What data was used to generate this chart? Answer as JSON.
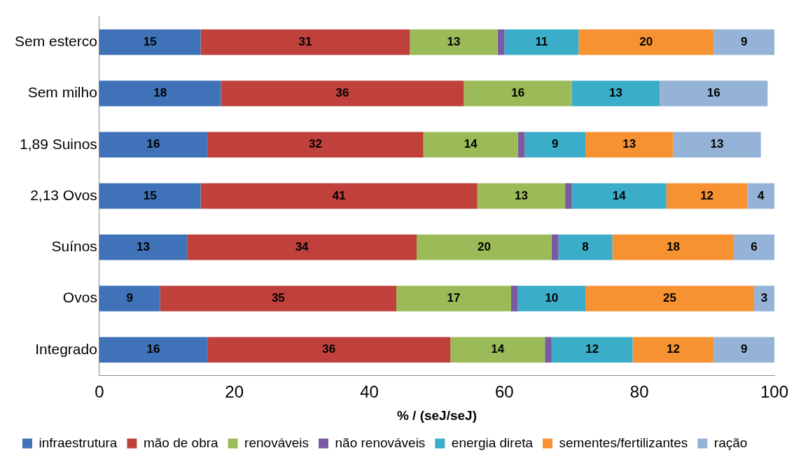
{
  "chart_data": {
    "type": "bar",
    "orientation": "horizontal",
    "stacked": true,
    "xlabel": "% / (seJ/seJ)",
    "xlim": [
      0,
      100
    ],
    "xticks": [
      0,
      20,
      40,
      60,
      80,
      100
    ],
    "grid": false,
    "legend": "bottom",
    "categories": [
      "Sem esterco",
      "Sem milho",
      "1,89 Suinos",
      "2,13 Ovos",
      "Suínos",
      "Ovos",
      "Integrado"
    ],
    "series": [
      {
        "name": "infraestrutura",
        "color": "#3f72b8",
        "values": [
          15,
          18,
          16,
          15,
          13,
          9,
          16
        ],
        "value_labels": [
          "15",
          "18",
          "16",
          "15",
          "13",
          "9",
          "16"
        ]
      },
      {
        "name": "mão de obra",
        "color": "#c0403c",
        "values": [
          31,
          36,
          32,
          41,
          34,
          35,
          36
        ],
        "value_labels": [
          "31",
          "36",
          "32",
          "41",
          "34",
          "35",
          "36"
        ]
      },
      {
        "name": "renováveis",
        "color": "#9bbb59",
        "values": [
          13,
          16,
          14,
          13,
          20,
          17,
          14
        ],
        "value_labels": [
          "13",
          "16",
          "14",
          "13",
          "20",
          "17",
          "14"
        ]
      },
      {
        "name": "não renováveis",
        "color": "#7a5aa0",
        "values": [
          1,
          null,
          1,
          1,
          1,
          1,
          1
        ],
        "value_labels": [
          null,
          null,
          null,
          null,
          null,
          null,
          null
        ]
      },
      {
        "name": "energia direta",
        "color": "#3cadc8",
        "values": [
          11,
          13,
          9,
          14,
          8,
          10,
          12
        ],
        "value_labels": [
          "11",
          "13",
          "9",
          "14",
          "8",
          "10",
          "12"
        ]
      },
      {
        "name": "sementes/fertilizantes",
        "color": "#f79232",
        "values": [
          20,
          null,
          13,
          12,
          18,
          25,
          12
        ],
        "value_labels": [
          "20",
          null,
          "13",
          "12",
          "18",
          "25",
          "12"
        ]
      },
      {
        "name": "ração",
        "color": "#95b3d7",
        "values": [
          9,
          16,
          13,
          4,
          6,
          3,
          9
        ],
        "value_labels": [
          "9",
          "16",
          "13",
          "4",
          "6",
          "3",
          "9"
        ]
      }
    ]
  }
}
